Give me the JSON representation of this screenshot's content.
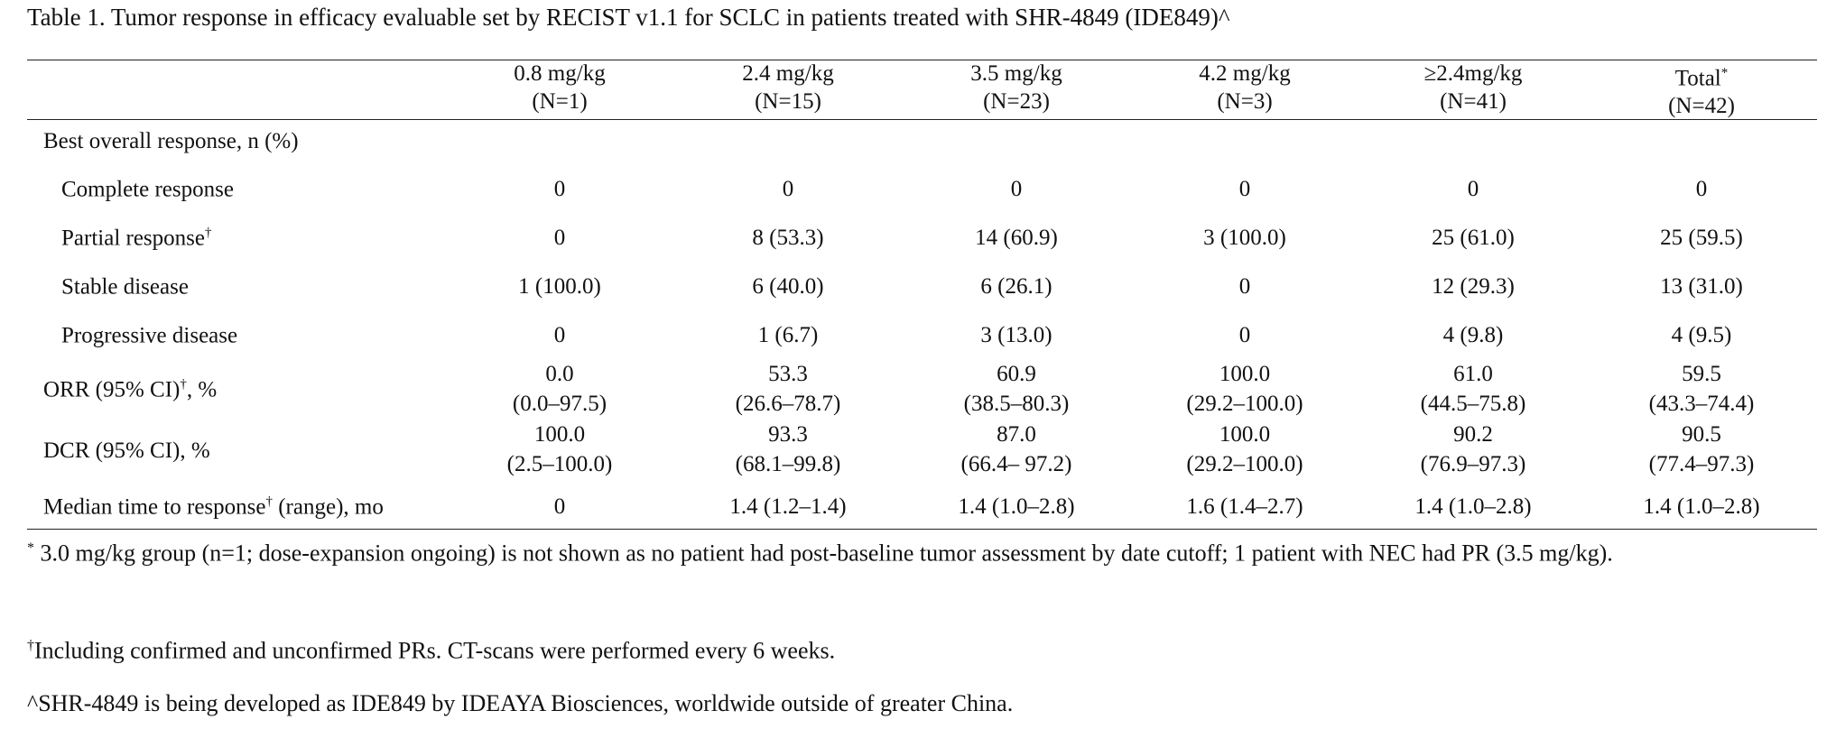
{
  "caption": "Table 1. Tumor response in efficacy evaluable set by RECIST v1.1 for SCLC in patients treated with SHR-4849 (IDE849)^",
  "columns": [
    {
      "dose": "0.8 mg/kg",
      "n": "(N=1)",
      "mark": ""
    },
    {
      "dose": "2.4 mg/kg",
      "n": "(N=15)",
      "mark": ""
    },
    {
      "dose": "3.5 mg/kg",
      "n": "(N=23)",
      "mark": ""
    },
    {
      "dose": "4.2 mg/kg",
      "n": "(N=3)",
      "mark": ""
    },
    {
      "dose": "≥2.4mg/kg",
      "n": "(N=41)",
      "mark": ""
    },
    {
      "dose": "Total",
      "n": "(N=42)",
      "mark": "*"
    }
  ],
  "section_label": "Best overall response, n (%)",
  "rows": [
    {
      "label": "Complete response",
      "mark": "",
      "suffix": "",
      "values": [
        "0",
        "0",
        "0",
        "0",
        "0",
        "0"
      ]
    },
    {
      "label": "Partial response",
      "mark": "†",
      "suffix": "",
      "values": [
        "0",
        "8 (53.3)",
        "14 (60.9)",
        "3 (100.0)",
        "25 (61.0)",
        "25 (59.5)"
      ]
    },
    {
      "label": "Stable disease",
      "mark": "",
      "suffix": "",
      "values": [
        "1 (100.0)",
        "6 (40.0)",
        "6 (26.1)",
        "0",
        "12 (29.3)",
        "13 (31.0)"
      ]
    },
    {
      "label": "Progressive disease",
      "mark": "",
      "suffix": "",
      "values": [
        "0",
        "1 (6.7)",
        "3 (13.0)",
        "0",
        "4 (9.8)",
        "4 (9.5)"
      ]
    }
  ],
  "orr": {
    "label": "ORR (95% CI)",
    "mark": "†",
    "suffix": ", %",
    "values": [
      "0.0",
      "53.3",
      "60.9",
      "100.0",
      "61.0",
      "59.5"
    ],
    "ci": [
      "(0.0–97.5)",
      "(26.6–78.7)",
      "(38.5–80.3)",
      "(29.2–100.0)",
      "(44.5–75.8)",
      "(43.3–74.4)"
    ]
  },
  "dcr": {
    "label": "DCR (95% CI), %",
    "values": [
      "100.0",
      "93.3",
      "87.0",
      "100.0",
      "90.2",
      "90.5"
    ],
    "ci": [
      "(2.5–100.0)",
      "(68.1–99.8)",
      "(66.4– 97.2)",
      "(29.2–100.0)",
      "(76.9–97.3)",
      "(77.4–97.3)"
    ]
  },
  "mttr": {
    "label": "Median time to response",
    "mark": "†",
    "suffix": " (range), mo",
    "values": [
      "0",
      "1.4 (1.2–1.4)",
      "1.4 (1.0–2.8)",
      "1.6 (1.4–2.7)",
      "1.4 (1.0–2.8)",
      "1.4 (1.0–2.8)"
    ]
  },
  "footnotes": {
    "fn1_mark": "*",
    "fn1_text": " 3.0 mg/kg group (n=1; dose-expansion ongoing) is not shown as no patient had post-baseline tumor assessment by date cutoff; 1 patient with NEC had PR (3.5 mg/kg).",
    "fn2_mark": "†",
    "fn2_text": "Including confirmed and unconfirmed PRs. CT-scans were performed every 6 weeks.",
    "fn3_text": "^SHR-4849 is being developed as IDE849 by IDEAYA Biosciences, worldwide outside of greater China."
  }
}
